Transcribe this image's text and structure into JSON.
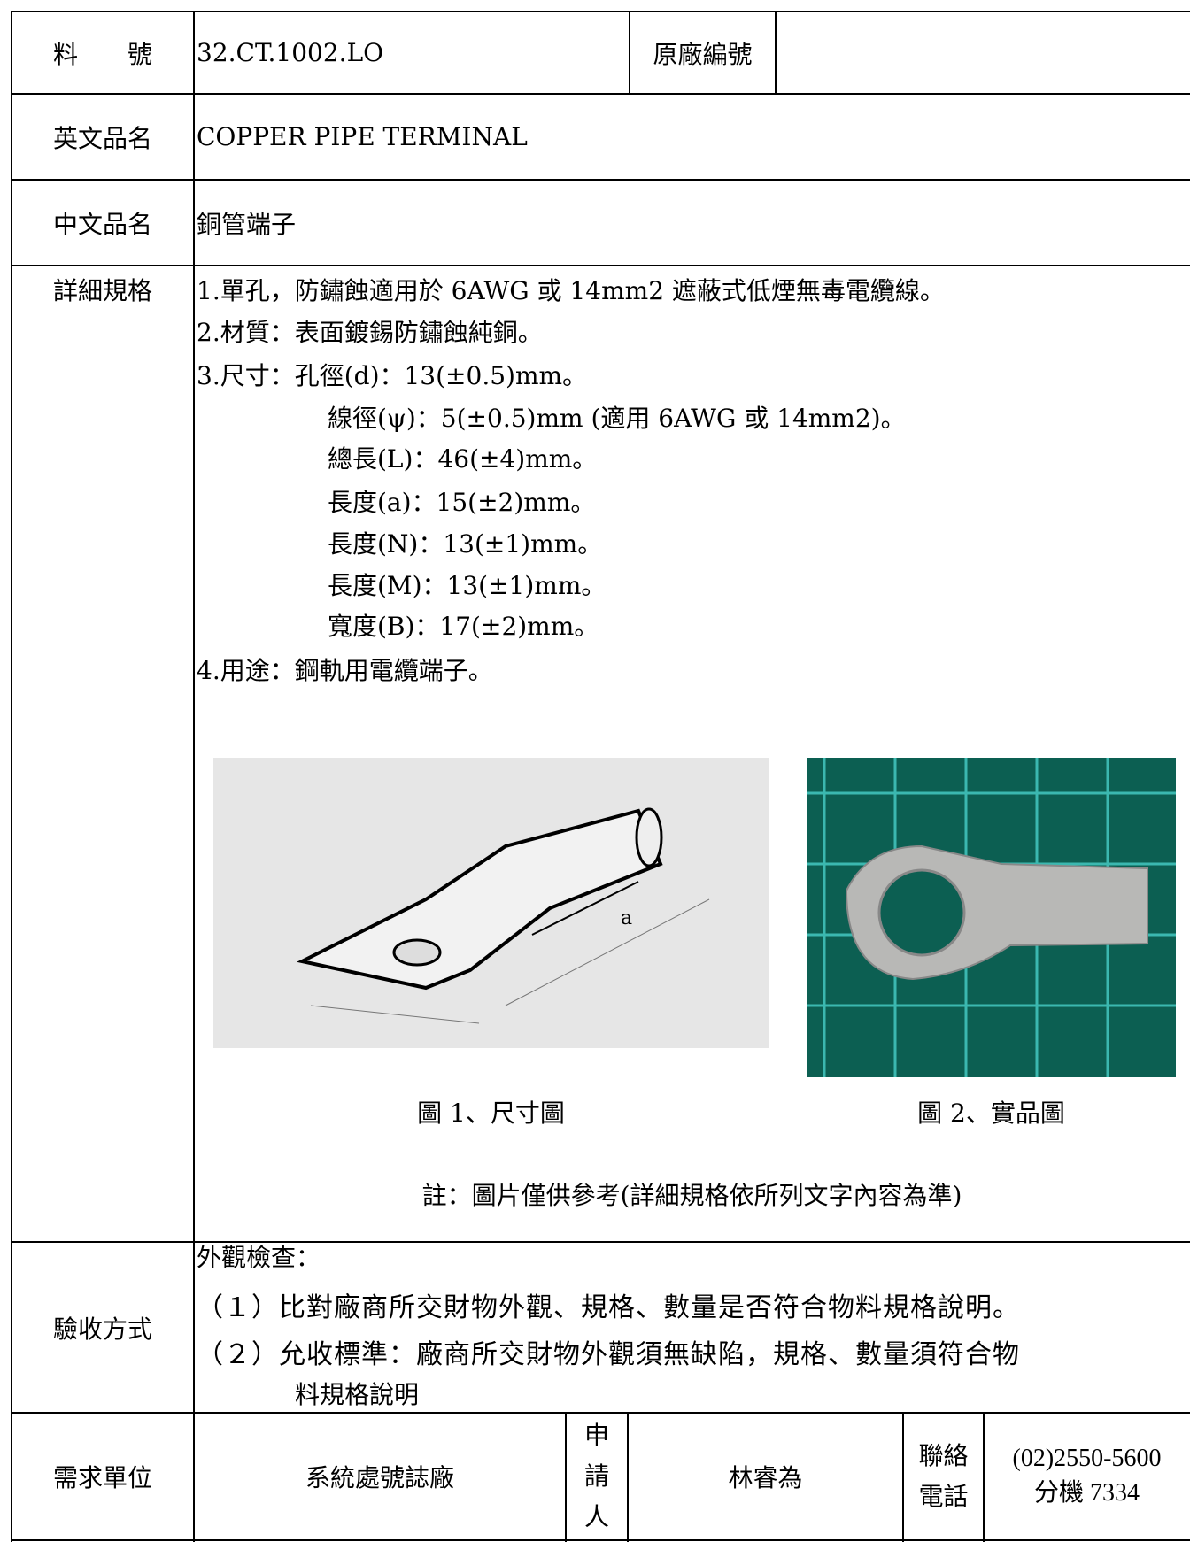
{
  "table": {
    "part_number": {
      "label": "料　　號",
      "value": "32.CT.1002.LO",
      "original_label": "原廠編號"
    },
    "english_name": {
      "label": "英文品名",
      "value": "COPPER PIPE TERMINAL"
    },
    "chinese_name": {
      "label": "中文品名",
      "value": "銅管端子"
    },
    "specifications": {
      "label": "詳細規格",
      "lines": [
        "1.單孔，防鏽蝕適用於 6AWG 或 14mm2 遮蔽式低煙無毒電纜線。",
        "2.材質：表面鍍錫防鏽蝕純銅。",
        "3.尺寸：孔徑(d)：13(±0.5)mm。",
        "線徑(ψ)：5(±0.5)mm (適用 6AWG 或 14mm2)。",
        "總長(L)：46(±4)mm。",
        "長度(a)：15(±2)mm。",
        "長度(N)：13(±1)mm。",
        "長度(M)：13(±1)mm。",
        "寬度(B)：17(±2)mm。",
        "4.用途：鋼軌用電纜端子。"
      ],
      "figures": [
        {
          "caption": "圖 1、尺寸圖"
        },
        {
          "caption": "圖 2、實品圖"
        }
      ],
      "note": "註：圖片僅供參考(詳細規格依所列文字內容為準)"
    },
    "inspection": {
      "label": "驗收方式",
      "lines": [
        "外觀檢查：",
        "（１）比對廠商所交財物外觀、規格、數量是否符合物料規格說明。",
        "（２）允收標準：廠商所交財物外觀須無缺陷，規格、數量須符合物",
        "料規格說明"
      ]
    },
    "requester": {
      "unit_label": "需求單位",
      "unit": "系統處號誌廠",
      "applicant_label": "申請人",
      "applicant": "林睿為",
      "phone_label": "聯絡電話",
      "phone": "(02)2550-5600",
      "extension": "分機 7334"
    }
  }
}
